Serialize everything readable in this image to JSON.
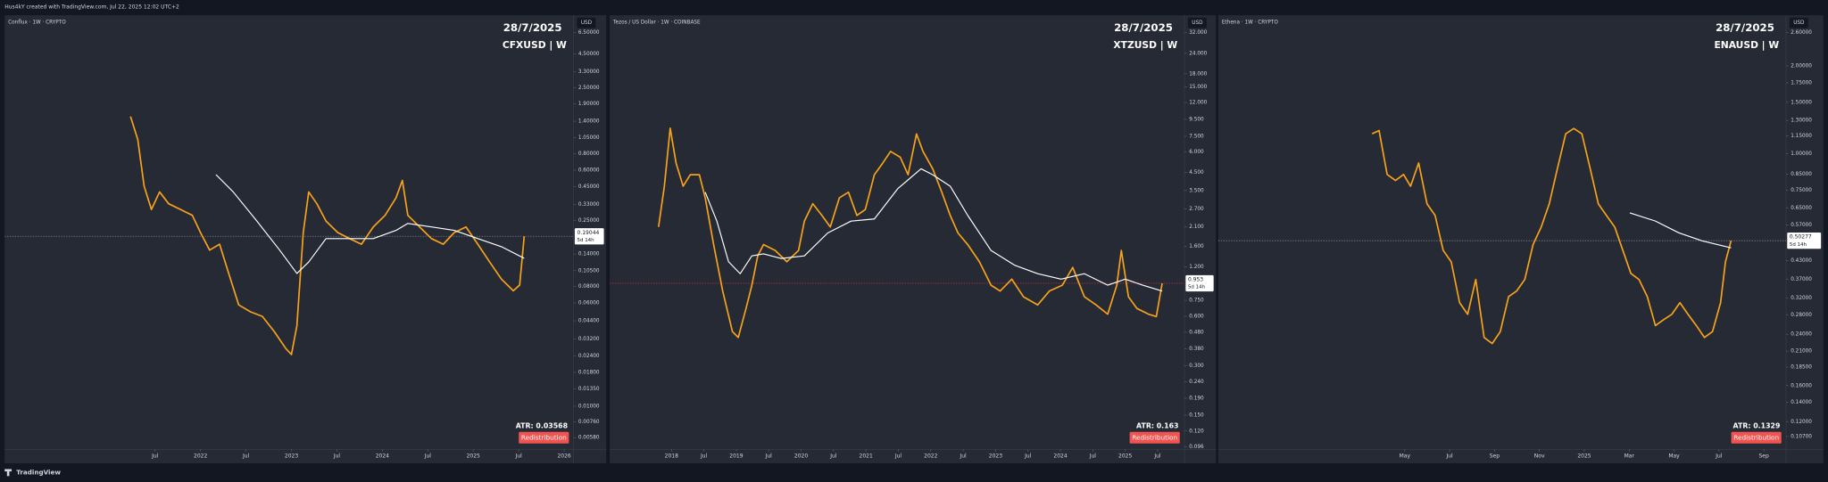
{
  "header": "Hus4kY created with TradingView.com, Jul 22, 2025 12:02 UTC+2",
  "footer": "TradingView",
  "chart_data": [
    {
      "type": "line",
      "header": "Conflux · 1W · CRYPTO",
      "subtitle": "28/7/2025",
      "title": "CFXUSD | W",
      "currency": "USD",
      "log_scale": true,
      "grid": false,
      "countdown": "5d 14h",
      "price_line_color": "#9598a1",
      "annotations": [
        "ATR: 0.03568",
        "Redistribution"
      ],
      "xlim": [
        2019.846,
        2026.103
      ],
      "ylim": [
        0.00474,
        8.8
      ],
      "xticks": [
        {
          "value": 2021.5,
          "label": "Jul"
        },
        2022,
        {
          "value": 2022.5,
          "label": "Jul"
        },
        2023,
        {
          "value": 2023.5,
          "label": "Jul"
        },
        2024,
        {
          "value": 2024.5,
          "label": "Jul"
        },
        2025,
        {
          "value": 2025.5,
          "label": "Jul"
        },
        2026
      ],
      "yticks": [
        {
          "value": 6.5,
          "label": "6.50000"
        },
        {
          "value": 4.5,
          "label": "4.50000"
        },
        {
          "value": 3.3,
          "label": "3.30000"
        },
        {
          "value": 2.5,
          "label": "2.50000"
        },
        {
          "value": 1.9,
          "label": "1.90000"
        },
        {
          "value": 1.4,
          "label": "1.40000"
        },
        {
          "value": 1.05,
          "label": "1.05000"
        },
        {
          "value": 0.8,
          "label": "0.80000"
        },
        {
          "value": 0.6,
          "label": "0.60000"
        },
        {
          "value": 0.45,
          "label": "0.45000"
        },
        {
          "value": 0.33,
          "label": "0.33000"
        },
        {
          "value": 0.25,
          "label": "0.25000"
        },
        {
          "value": 0.14,
          "label": "0.14000"
        },
        {
          "value": 0.105,
          "label": "0.10500"
        },
        {
          "value": 0.08,
          "label": "0.08000"
        },
        {
          "value": 0.06,
          "label": "0.06000"
        },
        {
          "value": 0.044,
          "label": "0.04400"
        },
        {
          "value": 0.032,
          "label": "0.03200"
        },
        {
          "value": 0.024,
          "label": "0.02400"
        },
        {
          "value": 0.018,
          "label": "0.01800"
        },
        {
          "value": 0.0135,
          "label": "0.01350"
        },
        {
          "value": 0.01,
          "label": "0.01000"
        },
        {
          "value": 0.0076,
          "label": "0.00760"
        },
        {
          "value": 0.0058,
          "label": "0.00580"
        }
      ],
      "series": [
        {
          "color": "#f7a21b",
          "x": [
            2021.23,
            2021.31,
            2021.38,
            2021.46,
            2021.55,
            2021.65,
            2021.78,
            2021.91,
            2022.0,
            2022.1,
            2022.21,
            2022.31,
            2022.42,
            2022.55,
            2022.68,
            2022.81,
            2022.94,
            2023.0,
            2023.06,
            2023.13,
            2023.19,
            2023.28,
            2023.38,
            2023.51,
            2023.64,
            2023.77,
            2023.9,
            2024.03,
            2024.15,
            2024.22,
            2024.28,
            2024.41,
            2024.54,
            2024.67,
            2024.79,
            2024.92,
            2025.05,
            2025.18,
            2025.31,
            2025.44,
            2025.51,
            2025.56
          ],
          "values": [
            1.52,
            1.02,
            0.454,
            0.303,
            0.411,
            0.335,
            0.303,
            0.274,
            0.203,
            0.15,
            0.166,
            0.1,
            0.058,
            0.0514,
            0.0475,
            0.0366,
            0.0271,
            0.0245,
            0.0404,
            0.203,
            0.411,
            0.335,
            0.248,
            0.203,
            0.183,
            0.166,
            0.224,
            0.274,
            0.371,
            0.502,
            0.274,
            0.224,
            0.183,
            0.166,
            0.203,
            0.224,
            0.166,
            0.122,
            0.0906,
            0.074,
            0.0818,
            0.19044
          ]
        },
        {
          "color": "#ffffff",
          "x": [
            2022.17,
            2022.36,
            2022.62,
            2022.87,
            2023.06,
            2023.19,
            2023.38,
            2023.64,
            2023.9,
            2024.15,
            2024.28,
            2024.54,
            2024.79,
            2025.05,
            2025.31,
            2025.56
          ],
          "values": [
            0.555,
            0.411,
            0.248,
            0.15,
            0.1,
            0.122,
            0.183,
            0.183,
            0.183,
            0.211,
            0.238,
            0.224,
            0.211,
            0.183,
            0.159,
            0.13
          ]
        }
      ]
    },
    {
      "type": "line",
      "header": "Tezos / US Dollar · 1W · COINBASE",
      "subtitle": "28/7/2025",
      "title": "XTZUSD | W",
      "currency": "USD",
      "log_scale": true,
      "grid": false,
      "countdown": "5d 14h",
      "price_line_color": "#f23645",
      "annotations": [
        "ATR: 0.163",
        "Redistribution"
      ],
      "xlim": [
        2017.047,
        2025.914
      ],
      "ylim": [
        0.0929,
        40.9
      ],
      "xticks": [
        2018,
        {
          "value": 2018.5,
          "label": "Jul"
        },
        2019,
        {
          "value": 2019.5,
          "label": "Jul"
        },
        2020,
        {
          "value": 2020.5,
          "label": "Jul"
        },
        2021,
        {
          "value": 2021.5,
          "label": "Jul"
        },
        2022,
        {
          "value": 2022.5,
          "label": "Jul"
        },
        2023,
        {
          "value": 2023.5,
          "label": "Jul"
        },
        2024,
        {
          "value": 2024.5,
          "label": "Jul"
        },
        2025,
        {
          "value": 2025.5,
          "label": "Jul"
        }
      ],
      "yticks": [
        {
          "value": 32,
          "label": "32.000"
        },
        {
          "value": 24,
          "label": "24.000"
        },
        {
          "value": 18,
          "label": "18.000"
        },
        {
          "value": 15,
          "label": "15.000"
        },
        {
          "value": 12,
          "label": "12.000"
        },
        {
          "value": 9.5,
          "label": "9.500"
        },
        {
          "value": 7.5,
          "label": "7.500"
        },
        {
          "value": 6,
          "label": "6.000"
        },
        {
          "value": 4.5,
          "label": "4.500"
        },
        {
          "value": 3.5,
          "label": "3.500"
        },
        {
          "value": 2.7,
          "label": "2.700"
        },
        {
          "value": 2.1,
          "label": "2.100"
        },
        {
          "value": 1.6,
          "label": "1.600"
        },
        {
          "value": 1.2,
          "label": "1.200"
        },
        {
          "value": 0.75,
          "label": "0.750"
        },
        {
          "value": 0.6,
          "label": "0.600"
        },
        {
          "value": 0.48,
          "label": "0.480"
        },
        {
          "value": 0.38,
          "label": "0.380"
        },
        {
          "value": 0.3,
          "label": "0.300"
        },
        {
          "value": 0.24,
          "label": "0.240"
        },
        {
          "value": 0.19,
          "label": "0.190"
        },
        {
          "value": 0.15,
          "label": "0.150"
        },
        {
          "value": 0.12,
          "label": "0.120"
        },
        {
          "value": 0.096,
          "label": "0.096"
        }
      ],
      "series": [
        {
          "color": "#f7a21b",
          "x": [
            2017.8,
            2017.89,
            2017.98,
            2018.07,
            2018.18,
            2018.29,
            2018.43,
            2018.52,
            2018.65,
            2018.79,
            2018.94,
            2019.03,
            2019.15,
            2019.24,
            2019.33,
            2019.42,
            2019.6,
            2019.78,
            2019.96,
            2020.05,
            2020.18,
            2020.32,
            2020.45,
            2020.59,
            2020.73,
            2020.86,
            2020.99,
            2021.13,
            2021.26,
            2021.38,
            2021.53,
            2021.65,
            2021.78,
            2021.88,
            2022.03,
            2022.17,
            2022.3,
            2022.42,
            2022.57,
            2022.75,
            2022.93,
            2023.07,
            2023.25,
            2023.43,
            2023.65,
            2023.83,
            2024.03,
            2024.19,
            2024.37,
            2024.55,
            2024.73,
            2024.87,
            2024.94,
            2025.05,
            2025.18,
            2025.36,
            2025.48,
            2025.57
          ],
          "values": [
            2.1,
            3.72,
            8.4,
            5.15,
            3.72,
            4.37,
            4.37,
            3.16,
            1.64,
            0.855,
            0.484,
            0.446,
            0.67,
            0.928,
            1.4,
            1.64,
            1.51,
            1.29,
            1.51,
            2.28,
            2.91,
            2.47,
            2.1,
            3.16,
            3.42,
            2.47,
            2.68,
            4.37,
            5.15,
            6.06,
            5.58,
            4.37,
            7.74,
            6.06,
            4.75,
            3.42,
            2.47,
            1.93,
            1.64,
            1.29,
            0.928,
            0.855,
            1.01,
            0.789,
            0.704,
            0.855,
            0.928,
            1.19,
            0.789,
            0.704,
            0.618,
            0.928,
            1.51,
            0.789,
            0.67,
            0.618,
            0.598,
            0.953
          ]
        },
        {
          "color": "#ffffff",
          "x": [
            2018.52,
            2018.7,
            2018.88,
            2019.06,
            2019.24,
            2019.42,
            2019.69,
            2020.05,
            2020.41,
            2020.77,
            2021.13,
            2021.49,
            2021.85,
            2022.03,
            2022.3,
            2022.57,
            2022.93,
            2023.29,
            2023.65,
            2024.01,
            2024.37,
            2024.73,
            2025.0,
            2025.27,
            2025.57
          ],
          "values": [
            3.42,
            2.28,
            1.29,
            1.09,
            1.4,
            1.44,
            1.35,
            1.4,
            1.93,
            2.28,
            2.35,
            3.59,
            4.75,
            4.37,
            3.72,
            2.47,
            1.51,
            1.23,
            1.09,
            1.01,
            1.09,
            0.928,
            1.01,
            0.928,
            0.855
          ]
        }
      ]
    },
    {
      "type": "line",
      "header": "Ethena · 1W · CRYPTO",
      "subtitle": "28/7/2025",
      "title": "ENAUSD | W",
      "currency": "USD",
      "log_scale": true,
      "grid": false,
      "countdown": "5d 14h",
      "price_line_color": "#9598a1",
      "annotations": [
        "ATR: 0.1329",
        "Redistribution"
      ],
      "xlim": [
        2023.641,
        2025.749
      ],
      "ylim": [
        0.0967,
        2.985
      ],
      "xticks": [
        {
          "value": 2024.3333,
          "label": "May"
        },
        {
          "value": 2024.5,
          "label": "Jul"
        },
        {
          "value": 2024.6667,
          "label": "Sep"
        },
        {
          "value": 2024.8333,
          "label": "Nov"
        },
        2025,
        {
          "value": 2025.1667,
          "label": "Mar"
        },
        {
          "value": 2025.3333,
          "label": "May"
        },
        {
          "value": 2025.5,
          "label": "Jul"
        },
        {
          "value": 2025.6667,
          "label": "Sep"
        }
      ],
      "yticks": [
        {
          "value": 2.6,
          "label": "2.60000"
        },
        {
          "value": 2.0,
          "label": "2.00000"
        },
        {
          "value": 1.75,
          "label": "1.75000"
        },
        {
          "value": 1.5,
          "label": "1.50000"
        },
        {
          "value": 1.3,
          "label": "1.30000"
        },
        {
          "value": 1.15,
          "label": "1.15000"
        },
        {
          "value": 1.0,
          "label": "1.00000"
        },
        {
          "value": 0.85,
          "label": "0.85000"
        },
        {
          "value": 0.75,
          "label": "0.75000"
        },
        {
          "value": 0.65,
          "label": "0.65000"
        },
        {
          "value": 0.57,
          "label": "0.57000"
        },
        {
          "value": 0.43,
          "label": "0.43000"
        },
        {
          "value": 0.37,
          "label": "0.37000"
        },
        {
          "value": 0.32,
          "label": "0.32000"
        },
        {
          "value": 0.28,
          "label": "0.28000"
        },
        {
          "value": 0.24,
          "label": "0.24000"
        },
        {
          "value": 0.21,
          "label": "0.21000"
        },
        {
          "value": 0.185,
          "label": "0.18500"
        },
        {
          "value": 0.16,
          "label": "0.16000"
        },
        {
          "value": 0.14,
          "label": "0.14000"
        },
        {
          "value": 0.12,
          "label": "0.12000"
        },
        {
          "value": 0.107,
          "label": "0.10700"
        }
      ],
      "series": [
        {
          "color": "#f7a21b",
          "x": [
            2024.212,
            2024.238,
            2024.268,
            2024.299,
            2024.329,
            2024.355,
            2024.385,
            2024.416,
            2024.446,
            2024.476,
            2024.506,
            2024.537,
            2024.567,
            2024.597,
            2024.628,
            2024.658,
            2024.688,
            2024.719,
            2024.749,
            2024.779,
            2024.81,
            2024.84,
            2024.87,
            2024.9,
            2024.931,
            2024.961,
            2024.991,
            2025.022,
            2025.052,
            2025.082,
            2025.113,
            2025.143,
            2025.173,
            2025.203,
            2025.234,
            2025.264,
            2025.294,
            2025.325,
            2025.355,
            2025.385,
            2025.416,
            2025.446,
            2025.476,
            2025.506,
            2025.524,
            2025.545
          ],
          "values": [
            1.17,
            1.2,
            0.848,
            0.809,
            0.848,
            0.773,
            0.929,
            0.673,
            0.614,
            0.466,
            0.425,
            0.308,
            0.281,
            0.37,
            0.234,
            0.223,
            0.245,
            0.323,
            0.338,
            0.37,
            0.488,
            0.56,
            0.673,
            0.887,
            1.17,
            1.22,
            1.17,
            0.887,
            0.673,
            0.614,
            0.56,
            0.466,
            0.388,
            0.37,
            0.323,
            0.257,
            0.269,
            0.281,
            0.308,
            0.281,
            0.257,
            0.234,
            0.245,
            0.308,
            0.425,
            0.50277
          ]
        },
        {
          "color": "#ffffff",
          "x": [
            2025.169,
            2025.264,
            2025.351,
            2025.437,
            2025.545
          ],
          "values": [
            0.626,
            0.587,
            0.535,
            0.502,
            0.475
          ]
        }
      ]
    }
  ]
}
